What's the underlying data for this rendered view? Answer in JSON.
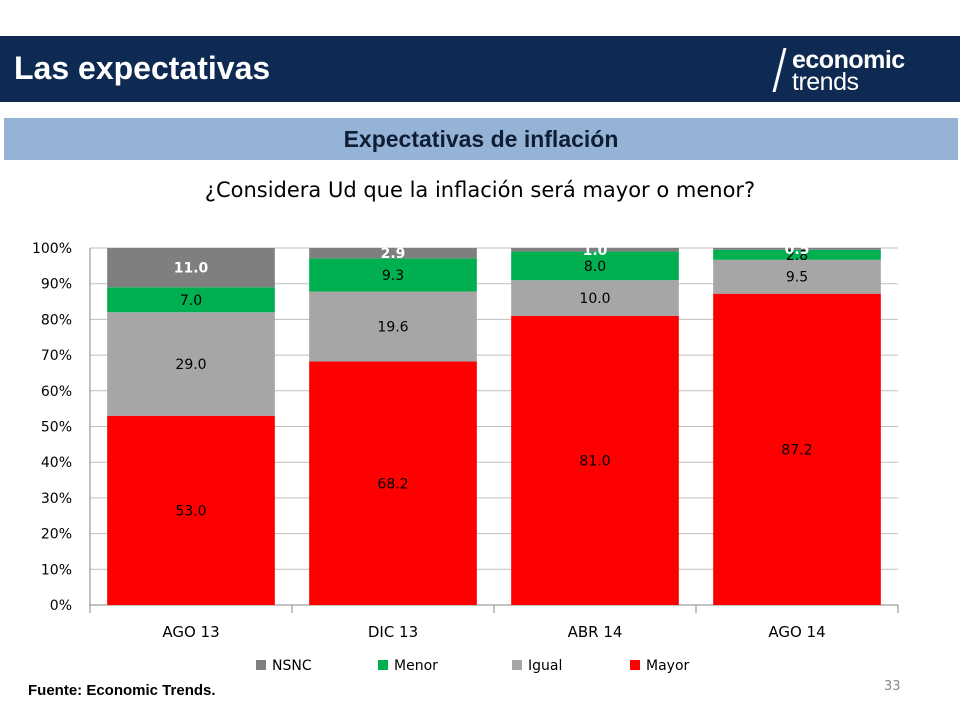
{
  "header": {
    "title": "Las expectativas",
    "logo_line1": "economic",
    "logo_line2": "trends",
    "background_color": "#0e2a52"
  },
  "subtitle": {
    "text": "Expectativas de inflación",
    "background_color": "#95b3d7"
  },
  "chart_data": {
    "type": "bar",
    "stacked": true,
    "title": "¿Considera Ud que la inflación será mayor o menor?",
    "categories": [
      "AGO 13",
      "DIC 13",
      "ABR 14",
      "AGO 14"
    ],
    "series": [
      {
        "name": "Mayor",
        "color": "#ff0000",
        "values": [
          53.0,
          68.2,
          81.0,
          87.2
        ],
        "labels": [
          "53.0",
          "68.2",
          "81.0",
          "87.2"
        ],
        "label_color": "#000000"
      },
      {
        "name": "Igual",
        "color": "#a6a6a6",
        "values": [
          29.0,
          19.6,
          10.0,
          9.5
        ],
        "labels": [
          "29.0",
          "19.6",
          "10.0",
          "9.5"
        ],
        "label_color": "#000000"
      },
      {
        "name": "Menor",
        "color": "#00b050",
        "values": [
          7.0,
          9.3,
          8.0,
          2.8
        ],
        "labels": [
          "7.0",
          "9.3",
          "8.0",
          "2.8"
        ],
        "label_color": "#000000"
      },
      {
        "name": "NSNC",
        "color": "#7f7f7f",
        "values": [
          11.0,
          2.9,
          1.0,
          0.5
        ],
        "labels": [
          "11.0",
          "2.9",
          "1.0",
          "0.5"
        ],
        "label_color": "#ffffff"
      }
    ],
    "ylim": [
      0,
      100
    ],
    "yticks": [
      "0%",
      "10%",
      "20%",
      "30%",
      "40%",
      "50%",
      "60%",
      "70%",
      "80%",
      "90%",
      "100%"
    ],
    "grid": true,
    "legend_position": "bottom",
    "legend_order": [
      "NSNC",
      "Menor",
      "Igual",
      "Mayor"
    ]
  },
  "footer": {
    "source": "Fuente: Economic Trends.",
    "page_number": "33"
  }
}
